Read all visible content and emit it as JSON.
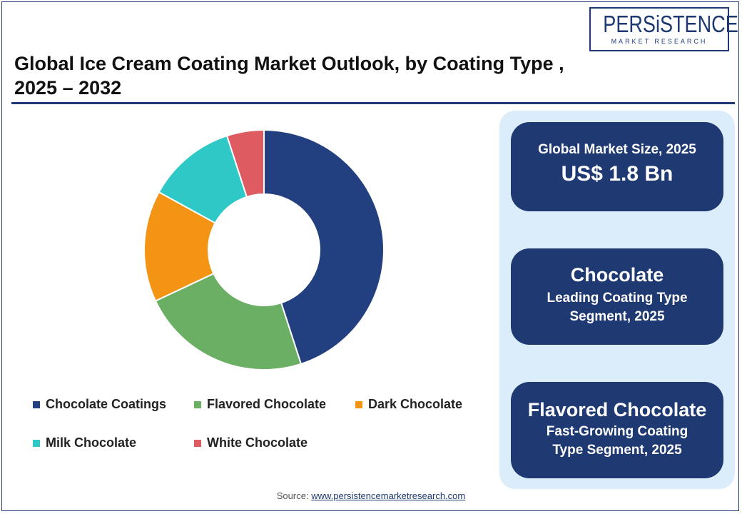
{
  "logo": {
    "name": "PERSiSTENCE",
    "tagline": "MARKET RESEARCH"
  },
  "title": {
    "line1": "Global Ice Cream Coating Market Outlook, by Coating Type ,",
    "line2": "2025 – 2032"
  },
  "chart_data": {
    "type": "pie",
    "style": "donut",
    "title": "",
    "categories": [
      "Chocolate Coatings",
      "Flavored Chocolate",
      "Dark Chocolate",
      "Milk Chocolate",
      "White Chocolate"
    ],
    "values": [
      45,
      23,
      15,
      12,
      5
    ],
    "colors": [
      "#22407f",
      "#6aaf64",
      "#f39415",
      "#2ec9c6",
      "#dd5b61"
    ],
    "legend_position": "bottom"
  },
  "cards": [
    {
      "line1": "Global Market Size, 2025",
      "line2": "US$ 1.8 Bn"
    },
    {
      "line1": "Chocolate",
      "line2": "Leading Coating Type",
      "line3": "Segment, 2025"
    },
    {
      "line1": "Flavored Chocolate",
      "line2": "Fast-Growing Coating",
      "line3": "Type Segment, 2025"
    }
  ],
  "source": {
    "label": "Source:",
    "link": "www.persistencemarketresearch.com"
  },
  "colors": {
    "brand": "#1f3a73",
    "panel": "#dbecfb"
  }
}
